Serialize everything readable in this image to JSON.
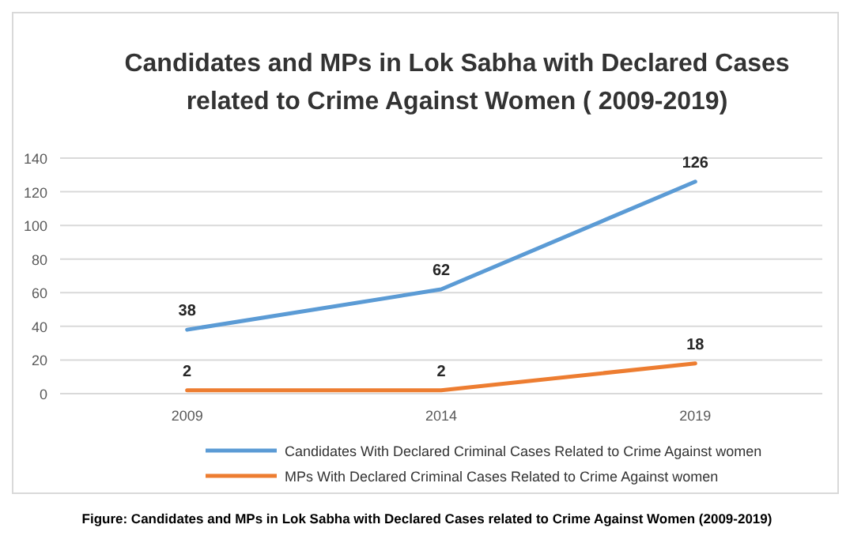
{
  "chart_data": {
    "type": "line",
    "title": "Candidates and MPs in Lok Sabha with Declared Cases\nrelated to Crime Against Women ( 2009-2019)",
    "categories": [
      "2009",
      "2014",
      "2019"
    ],
    "series": [
      {
        "name": "Candidates With Declared Criminal Cases Related to Crime Against women",
        "color": "#5b9bd5",
        "values": [
          38,
          62,
          126
        ]
      },
      {
        "name": "MPs With Declared Criminal Cases Related to Crime Against women",
        "color": "#ed7d31",
        "values": [
          2,
          2,
          18
        ]
      }
    ],
    "ylim": [
      0,
      140
    ],
    "yticks": [
      0,
      20,
      40,
      60,
      80,
      100,
      120,
      140
    ],
    "grid": "y",
    "legend": "bottom",
    "data_labels": true,
    "marker": "none",
    "line_style": "solid",
    "annotations": [
      "Figure: Candidates and MPs in Lok Sabha with Declared Cases related to Crime Against Women (2009-2019)"
    ]
  }
}
